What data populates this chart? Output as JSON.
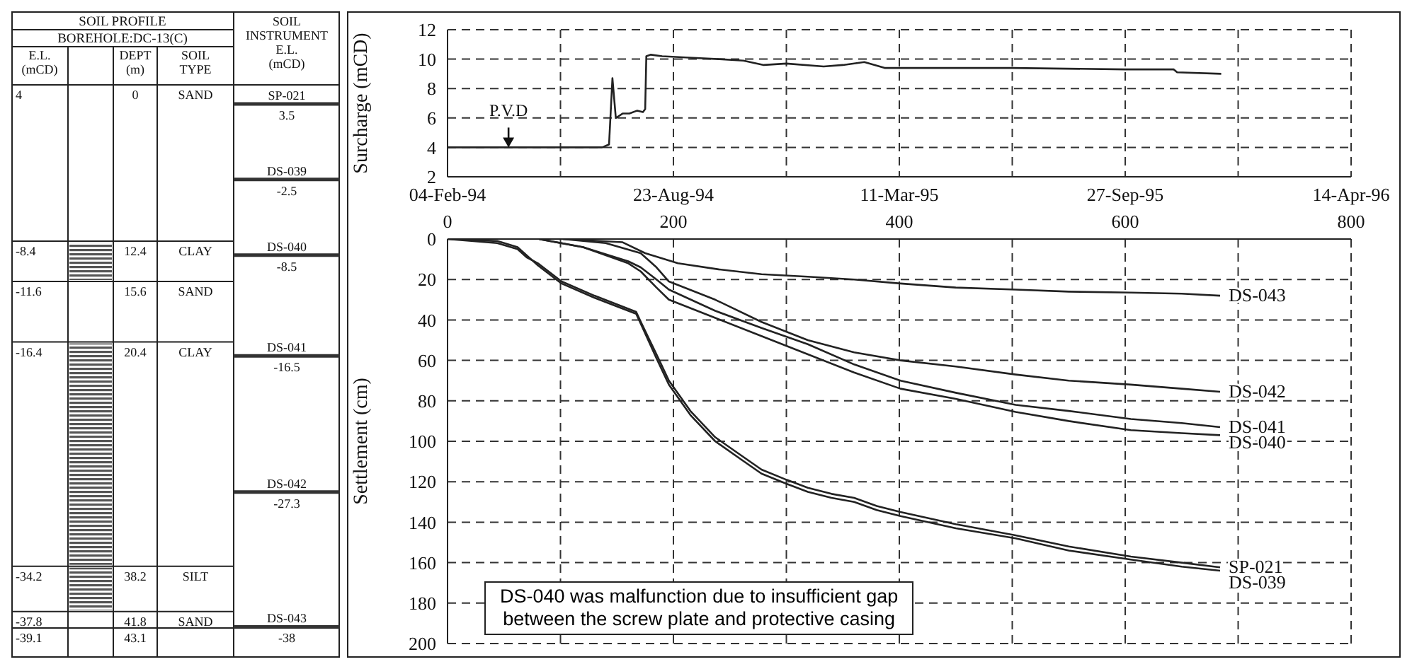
{
  "chart_data": [
    {
      "type": "other",
      "title": "SOIL PROFILE",
      "subtitle": "BOREHOLE:DC-13(C)",
      "legend_title": "SOIL\nINSTRUMENT\nE.L.\n(mCD)",
      "cell_labels": [
        [
          "E.L.\n(mCD)",
          null,
          "DEPT\n(m)",
          "SOIL\nTYPE"
        ],
        [
          "4",
          null,
          "0",
          "SAND"
        ],
        [
          "-8.4",
          null,
          "12.4",
          "CLAY"
        ],
        [
          "-11.6",
          null,
          "15.6",
          "SAND"
        ],
        [
          "-16.4",
          null,
          "20.4",
          "CLAY"
        ],
        [
          "-34.2",
          null,
          "38.2",
          "SILT"
        ],
        [
          "-37.8",
          null,
          "41.8",
          "SAND"
        ],
        [
          "-39.1",
          null,
          "43.1",
          null
        ]
      ],
      "categories": [
        "SP-021",
        "DS-039",
        "DS-040",
        "DS-041",
        "DS-042",
        "DS-043"
      ],
      "values": [
        3.5,
        -2.5,
        -8.5,
        -16.5,
        -27.3,
        -38
      ],
      "data_labels": true
    },
    {
      "type": "line",
      "ylabel": "Surcharge (mCD)",
      "xlim": [
        "1994-02-04",
        "1996-04-14"
      ],
      "xticks": [
        {
          "value": "1994-02-04",
          "label": "04-Feb-94"
        },
        {
          "value": "1994-05-15",
          "label": null
        },
        {
          "value": "1994-08-23",
          "label": "23-Aug-94"
        },
        {
          "value": "1994-12-01",
          "label": null
        },
        {
          "value": "1995-03-11",
          "label": "11-Mar-95"
        },
        {
          "value": "1995-06-19",
          "label": null
        },
        {
          "value": "1995-09-27",
          "label": "27-Sep-95"
        },
        {
          "value": "1996-01-05",
          "label": null
        },
        {
          "value": "1996-04-14",
          "label": "14-Apr-96"
        }
      ],
      "ylim": [
        2,
        12
      ],
      "yticks": [
        2,
        4,
        6,
        8,
        10,
        12
      ],
      "grid": true,
      "marker": "none",
      "annotations": [
        {
          "text": "P.V.D",
          "x": "1994-03-30",
          "y": 4
        }
      ],
      "x": [
        "1994-02-04",
        "1994-06-21",
        "1994-06-27",
        "1994-06-30",
        "1994-07-03",
        "1994-07-05",
        "1994-07-09",
        "1994-07-15",
        "1994-07-22",
        "1994-07-27",
        "1994-07-29",
        "1994-07-30",
        "1994-08-03",
        "1994-08-13",
        "1994-09-06",
        "1994-10-02",
        "1994-10-24",
        "1994-11-11",
        "1994-12-01",
        "1995-01-03",
        "1995-01-20",
        "1995-02-08",
        "1995-02-26",
        "1995-03-31",
        "1995-06-19",
        "1995-09-27",
        "1995-11-09",
        "1995-11-12",
        "1995-12-21"
      ],
      "series": [
        {
          "color": "#222222",
          "values": [
            4,
            4,
            4.2,
            8.7,
            6,
            6.1,
            6.3,
            6.3,
            6.5,
            6.4,
            6.6,
            10.2,
            10.3,
            10.2,
            10.1,
            10,
            9.9,
            9.6,
            9.7,
            9.5,
            9.6,
            9.8,
            9.4,
            9.4,
            9.4,
            9.3,
            9.3,
            9.1,
            9.0
          ]
        }
      ]
    },
    {
      "type": "line",
      "ylabel": "Settlement (cm)",
      "xlim": [
        0,
        800
      ],
      "xticks": [
        0,
        {
          "value": 100,
          "label": null
        },
        200,
        {
          "value": 300,
          "label": null
        },
        400,
        {
          "value": 500,
          "label": null
        },
        600,
        {
          "value": 700,
          "label": null
        },
        800
      ],
      "ylim": [
        200,
        0
      ],
      "yticks": [
        0,
        20,
        40,
        60,
        80,
        100,
        120,
        140,
        160,
        180,
        200
      ],
      "grid": true,
      "marker": "none",
      "annotations": [
        "DS-040 was malfunction due to insufficient gap\nbetween the screw plate and protective casing"
      ],
      "series": [
        {
          "name": "DS-043",
          "color": "#222222",
          "x": [
            102,
            155,
            175,
            204,
            240,
            278,
            319,
            360,
            401,
            450,
            503,
            550,
            605,
            650,
            684
          ],
          "values": [
            0,
            1.6,
            7,
            12,
            15,
            17.4,
            18.6,
            20,
            22,
            24,
            25,
            26,
            26.5,
            27,
            28
          ]
        },
        {
          "name": "DS-042",
          "color": "#222222",
          "x": [
            102,
            140,
            171,
            185,
            196,
            237,
            278,
            319,
            360,
            401,
            450,
            503,
            550,
            605,
            650,
            684
          ],
          "values": [
            0,
            2,
            7,
            14,
            21,
            30,
            41,
            50,
            56,
            60,
            63,
            67,
            70,
            72,
            74,
            75.5
          ]
        },
        {
          "name": "DS-041",
          "color": "#222222",
          "x": [
            81,
            120,
            160,
            171,
            185,
            196,
            237,
            278,
            319,
            360,
            401,
            450,
            503,
            550,
            605,
            650,
            684
          ],
          "values": [
            0,
            4,
            11,
            14,
            20,
            25,
            35.5,
            44,
            52,
            62,
            70,
            76,
            82,
            85,
            89,
            91,
            93
          ]
        },
        {
          "name": "DS-040",
          "color": "#222222",
          "x": [
            81,
            120,
            160,
            171,
            185,
            196,
            237,
            278,
            319,
            360,
            401,
            450,
            503,
            550,
            605,
            650,
            684
          ],
          "values": [
            0,
            4,
            12,
            16,
            24,
            30,
            39,
            48,
            57,
            66,
            74,
            79,
            85.5,
            90,
            94.5,
            96,
            97
          ]
        },
        {
          "name": "SP-021",
          "color": "#222222",
          "x": [
            0,
            44,
            62,
            70,
            80,
            101,
            130,
            167,
            172,
            185,
            196,
            215,
            237,
            260,
            278,
            300,
            319,
            340,
            360,
            380,
            401,
            450,
            503,
            550,
            605,
            650,
            684
          ],
          "values": [
            0,
            2,
            5,
            9,
            12,
            21,
            28,
            36,
            42,
            57,
            70,
            85,
            98,
            107,
            114,
            119,
            123,
            126,
            128,
            132,
            135,
            141,
            146.5,
            152,
            157,
            160,
            162.3
          ]
        },
        {
          "name": "DS-039",
          "color": "#222222",
          "x": [
            0,
            44,
            62,
            70,
            80,
            101,
            130,
            167,
            172,
            185,
            196,
            215,
            237,
            260,
            278,
            300,
            319,
            340,
            360,
            380,
            401,
            450,
            503,
            550,
            605,
            650,
            684
          ],
          "values": [
            0,
            1,
            4,
            8,
            13,
            22,
            29,
            37,
            43,
            59,
            72,
            87,
            100,
            109,
            116,
            121,
            125,
            128,
            130,
            134,
            137,
            143,
            148,
            154,
            158.5,
            162,
            164
          ]
        }
      ]
    }
  ]
}
